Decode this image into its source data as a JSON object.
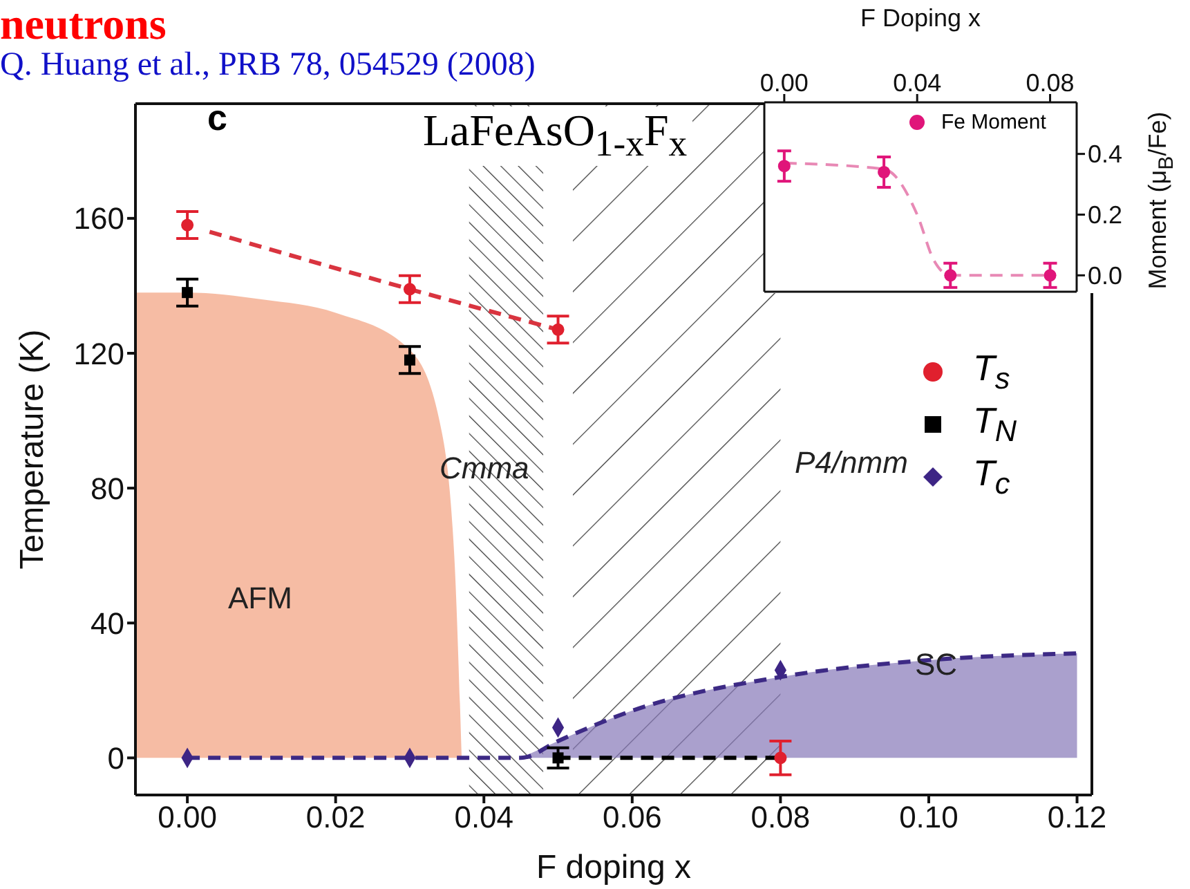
{
  "chart_data": [
    {
      "type": "scatter",
      "title": "neutrons",
      "xlabel": "F doping x",
      "ylabel": "Temperature (K)",
      "xlim": [
        -0.007,
        0.122
      ],
      "ylim": [
        -11,
        194
      ],
      "xticks": [
        {
          "value": 0,
          "label": "0.00"
        },
        {
          "value": 0.02,
          "label": "0.02"
        },
        {
          "value": 0.04,
          "label": "0.04"
        },
        {
          "value": 0.06,
          "label": "0.06"
        },
        {
          "value": 0.08,
          "label": "0.08"
        },
        {
          "value": 0.1,
          "label": "0.10"
        },
        {
          "value": 0.12,
          "label": "0.12"
        }
      ],
      "yticks": [
        0,
        40,
        80,
        120,
        160
      ],
      "legend": "right",
      "series": [
        {
          "type": "area",
          "color": "#f2a07e",
          "x": [
            -0.007,
            0,
            0.01,
            0.02,
            0.03,
            0.034,
            0.036,
            0.037
          ],
          "values": [
            138,
            138,
            136,
            132,
            121,
            100,
            60,
            0
          ]
        },
        {
          "type": "area",
          "color": "#8677b8",
          "x": [
            0.045,
            0.05,
            0.06,
            0.08,
            0.1,
            0.12
          ],
          "values": [
            0,
            5,
            14,
            24,
            29,
            31
          ]
        },
        {
          "type": "line",
          "color": "#d9343f",
          "line_style": "dashed",
          "x": [
            0.003,
            0.03,
            0.05
          ],
          "values": [
            156,
            139,
            127
          ]
        },
        {
          "type": "line",
          "color": "#000000",
          "line_style": "dashed",
          "x": [
            0.05,
            0.08
          ],
          "values": [
            0,
            0
          ]
        },
        {
          "type": "line",
          "color": "#3d2a85",
          "line_style": "dashed",
          "x": [
            0,
            0.045,
            0.05,
            0.06,
            0.08,
            0.1,
            0.12
          ],
          "values": [
            0,
            0,
            5,
            14,
            24,
            29,
            31
          ]
        },
        {
          "name": "T$_{s}$",
          "color": "#e0202e",
          "marker": "circle",
          "x": [
            0,
            0.03,
            0.05,
            0.08
          ],
          "values": [
            158,
            139,
            127,
            0
          ],
          "errors": [
            4,
            4,
            4,
            5
          ]
        },
        {
          "name": "T$_{N}$",
          "color": "#000000",
          "marker": "square",
          "x": [
            0,
            0.03,
            0.05
          ],
          "values": [
            138,
            118,
            0
          ],
          "errors": [
            4,
            4,
            3
          ]
        },
        {
          "name": "T$_{c}$",
          "color": "#3d2585",
          "marker": "diamond",
          "x": [
            0,
            0.03,
            0.05,
            0.08
          ],
          "values": [
            0,
            0,
            9,
            26
          ]
        }
      ],
      "bands": [
        {
          "axis": "x",
          "from": 0.038,
          "to": 0.048,
          "color": "#333333"
        },
        {
          "axis": "x",
          "from": 0.052,
          "to": 0.08,
          "color": "#333333"
        }
      ],
      "annotations": [
        "c",
        "LaFeAsO$_{1-x}$F$_{x}$",
        "Q. Huang et al., PRB 78, 054529 (2008)",
        "Cmma",
        "P4/nmm",
        "AFM",
        "SC"
      ]
    },
    {
      "type": "scatter",
      "xlabel": "F Doping x",
      "ylabel": "Moment (μ$_{B}$/Fe)",
      "xlim": [
        -0.006,
        0.088
      ],
      "ylim": [
        -0.054,
        0.57
      ],
      "xticks": [
        {
          "value": 0,
          "label": "0.00"
        },
        {
          "value": 0.04,
          "label": "0.04"
        },
        {
          "value": 0.08,
          "label": "0.08"
        }
      ],
      "yticks": [
        {
          "value": 0,
          "label": "0.0"
        },
        {
          "value": 0.2,
          "label": "0.2"
        },
        {
          "value": 0.4,
          "label": "0.4"
        }
      ],
      "legend": "top right",
      "series": [
        {
          "type": "line",
          "color": "#e889b5",
          "line_style": "dashed",
          "x": [
            0,
            0.03,
            0.04,
            0.045,
            0.05,
            0.08
          ],
          "values": [
            0.37,
            0.35,
            0.2,
            0.05,
            0,
            0
          ]
        },
        {
          "name": "Fe Moment",
          "color": "#e0157a",
          "marker": "circle",
          "x": [
            0,
            0.03,
            0.05,
            0.08
          ],
          "values": [
            0.36,
            0.34,
            0,
            0
          ],
          "errors": [
            0.05,
            0.05,
            0.04,
            0.04
          ]
        }
      ]
    }
  ]
}
